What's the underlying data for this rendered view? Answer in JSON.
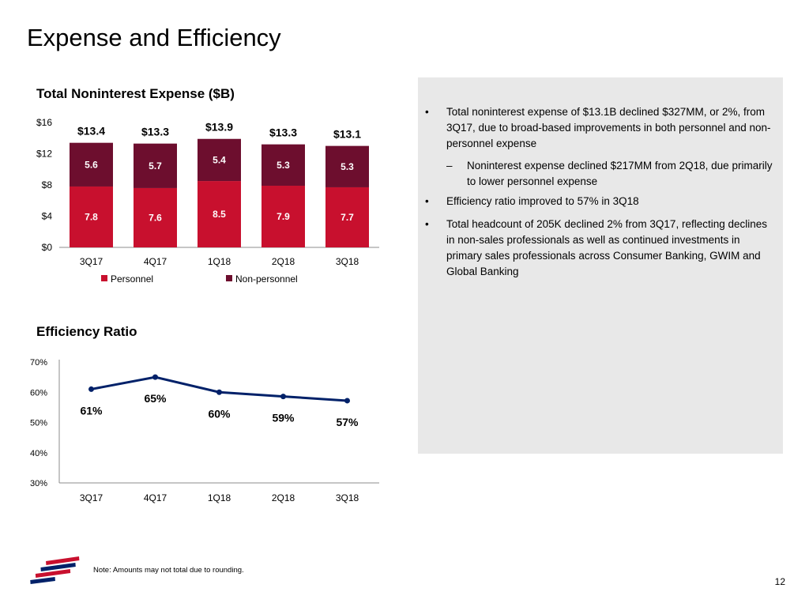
{
  "slide": {
    "title": "Expense and Efficiency",
    "footnote": "Note: Amounts may not total due to rounding.",
    "page_number": "12"
  },
  "colors": {
    "personnel": "#c8102e",
    "non_personnel": "#6d0e2e",
    "line": "#012169",
    "panel": "#e8e8e8"
  },
  "commentary": {
    "bullets": [
      {
        "marker": "•",
        "text": "Total noninterest expense of $13.1B declined $327MM, or 2%, from 3Q17, due to broad-based improvements in both personnel and non-personnel expense"
      },
      {
        "marker": "–",
        "text": "Noninterest expense declined $217MM from 2Q18, due primarily to lower personnel expense",
        "level": 2
      },
      {
        "marker": "•",
        "text": "Efficiency ratio improved to 57% in 3Q18"
      },
      {
        "marker": "•",
        "text": "Total headcount of 205K declined 2% from 3Q17, reflecting declines in non-sales professionals as well as continued investments in primary sales professionals across Consumer Banking, GWIM and Global Banking"
      }
    ]
  },
  "chart_data": [
    {
      "type": "bar",
      "stacked": true,
      "title": "Total Noninterest Expense ($B)",
      "categories": [
        "3Q17",
        "4Q17",
        "1Q18",
        "2Q18",
        "3Q18"
      ],
      "series": [
        {
          "name": "Personnel",
          "values": [
            7.8,
            7.6,
            8.5,
            7.9,
            7.7
          ],
          "labels": [
            "7.8",
            "7.6",
            "8.5",
            "7.9",
            "7.7"
          ],
          "color": "#c8102e"
        },
        {
          "name": "Non-personnel",
          "values": [
            5.6,
            5.7,
            5.4,
            5.3,
            5.3
          ],
          "labels": [
            "5.6",
            "5.7",
            "5.4",
            "5.3",
            "5.3"
          ],
          "color": "#6d0e2e"
        }
      ],
      "totals": [
        "$13.4",
        "$13.3",
        "$13.9",
        "$13.3",
        "$13.1"
      ],
      "yticks": [
        "$0",
        "$4",
        "$8",
        "$12",
        "$16"
      ],
      "ytick_values": [
        0,
        4,
        8,
        12,
        16
      ],
      "ylim": [
        0,
        16
      ],
      "grid": false,
      "legend": "bottom"
    },
    {
      "type": "line",
      "title": "Efficiency Ratio",
      "categories": [
        "3Q17",
        "4Q17",
        "1Q18",
        "2Q18",
        "3Q18"
      ],
      "series": [
        {
          "values": [
            61,
            65,
            60,
            58.6,
            57.2
          ],
          "labels": [
            "61%",
            "65%",
            "60%",
            "59%",
            "57%"
          ],
          "color": "#012169"
        }
      ],
      "yticks": [
        "30%",
        "40%",
        "50%",
        "60%",
        "70%"
      ],
      "ytick_values": [
        30,
        40,
        50,
        60,
        70
      ],
      "ylim": [
        30,
        70
      ],
      "grid": false,
      "legend": "none"
    }
  ]
}
